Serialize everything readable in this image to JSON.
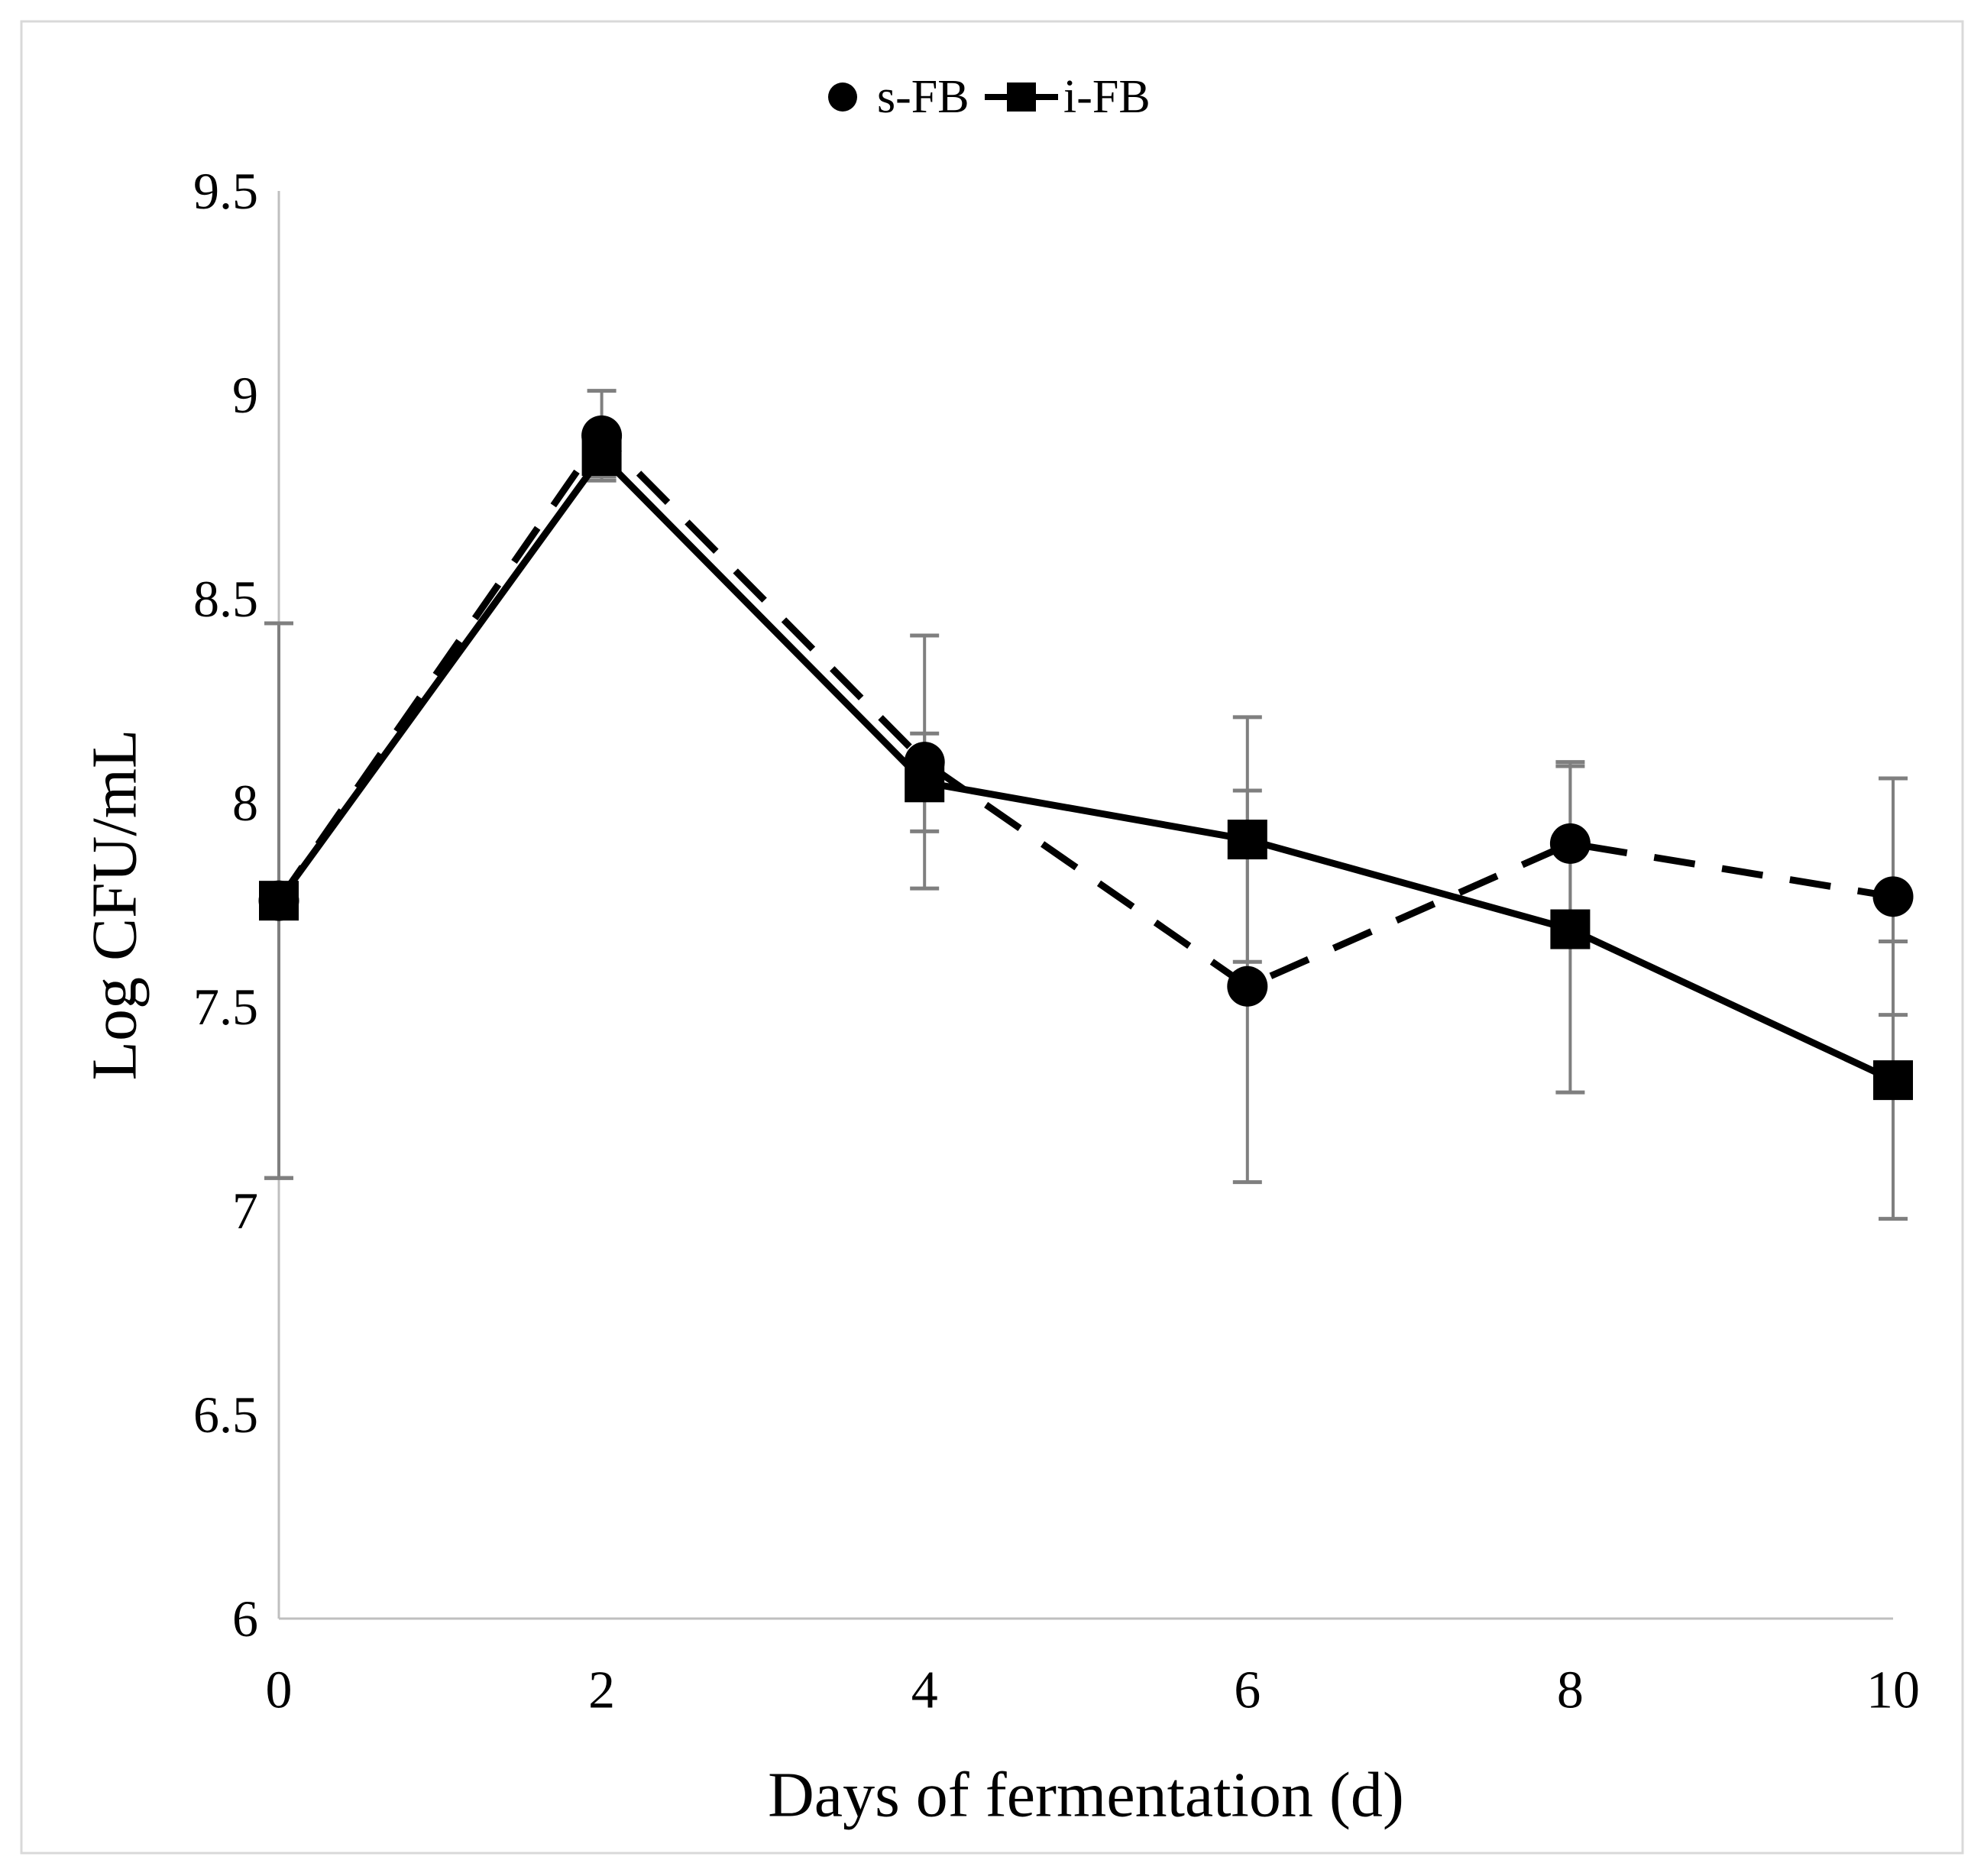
{
  "figure": {
    "background": "#FFFFFF",
    "border_color": "#D9D9D9"
  },
  "chart_data": {
    "type": "line",
    "title": "",
    "x": [
      0,
      2,
      4,
      6,
      8,
      10
    ],
    "xlabel": "Days of fermentation (d)",
    "ylabel": "Log CFU/mL",
    "ylim": [
      6,
      9.5
    ],
    "xlim": [
      0,
      10
    ],
    "grid": false,
    "legend_position": "top-center",
    "yticks": [
      {
        "value": 9.5,
        "label": "9.5"
      },
      {
        "value": 9,
        "label": "9"
      },
      {
        "value": 8.5,
        "label": "8.5"
      },
      {
        "value": 8,
        "label": "8"
      },
      {
        "value": 7.5,
        "label": "7.5"
      },
      {
        "value": 7,
        "label": "7"
      },
      {
        "value": 6.5,
        "label": "6.5"
      },
      {
        "value": 6,
        "label": "6"
      }
    ],
    "xticks": [
      {
        "value": 0,
        "label": "0"
      },
      {
        "value": 2,
        "label": "2"
      },
      {
        "value": 4,
        "label": "4"
      },
      {
        "value": 6,
        "label": "6"
      },
      {
        "value": 8,
        "label": "8"
      },
      {
        "value": 10,
        "label": "10"
      }
    ],
    "series": [
      {
        "name": "s-FB",
        "marker": "circle",
        "line_style": "dashed",
        "values": [
          7.76,
          8.9,
          8.1,
          7.55,
          7.9,
          7.77
        ],
        "errors": [
          0.68,
          0.11,
          0.31,
          0.48,
          0.2,
          0.29
        ]
      },
      {
        "name": "i-FB",
        "marker": "square",
        "line_style": "solid",
        "values": [
          7.76,
          8.85,
          8.05,
          7.91,
          7.69,
          7.32
        ],
        "errors": [
          0.68,
          0.05,
          0.12,
          0.3,
          0.4,
          0.34
        ]
      }
    ],
    "colors": {
      "series": "#000000",
      "axis": "#BFBFBF",
      "error_bar": "#7F7F7F",
      "text": "#000000"
    }
  }
}
